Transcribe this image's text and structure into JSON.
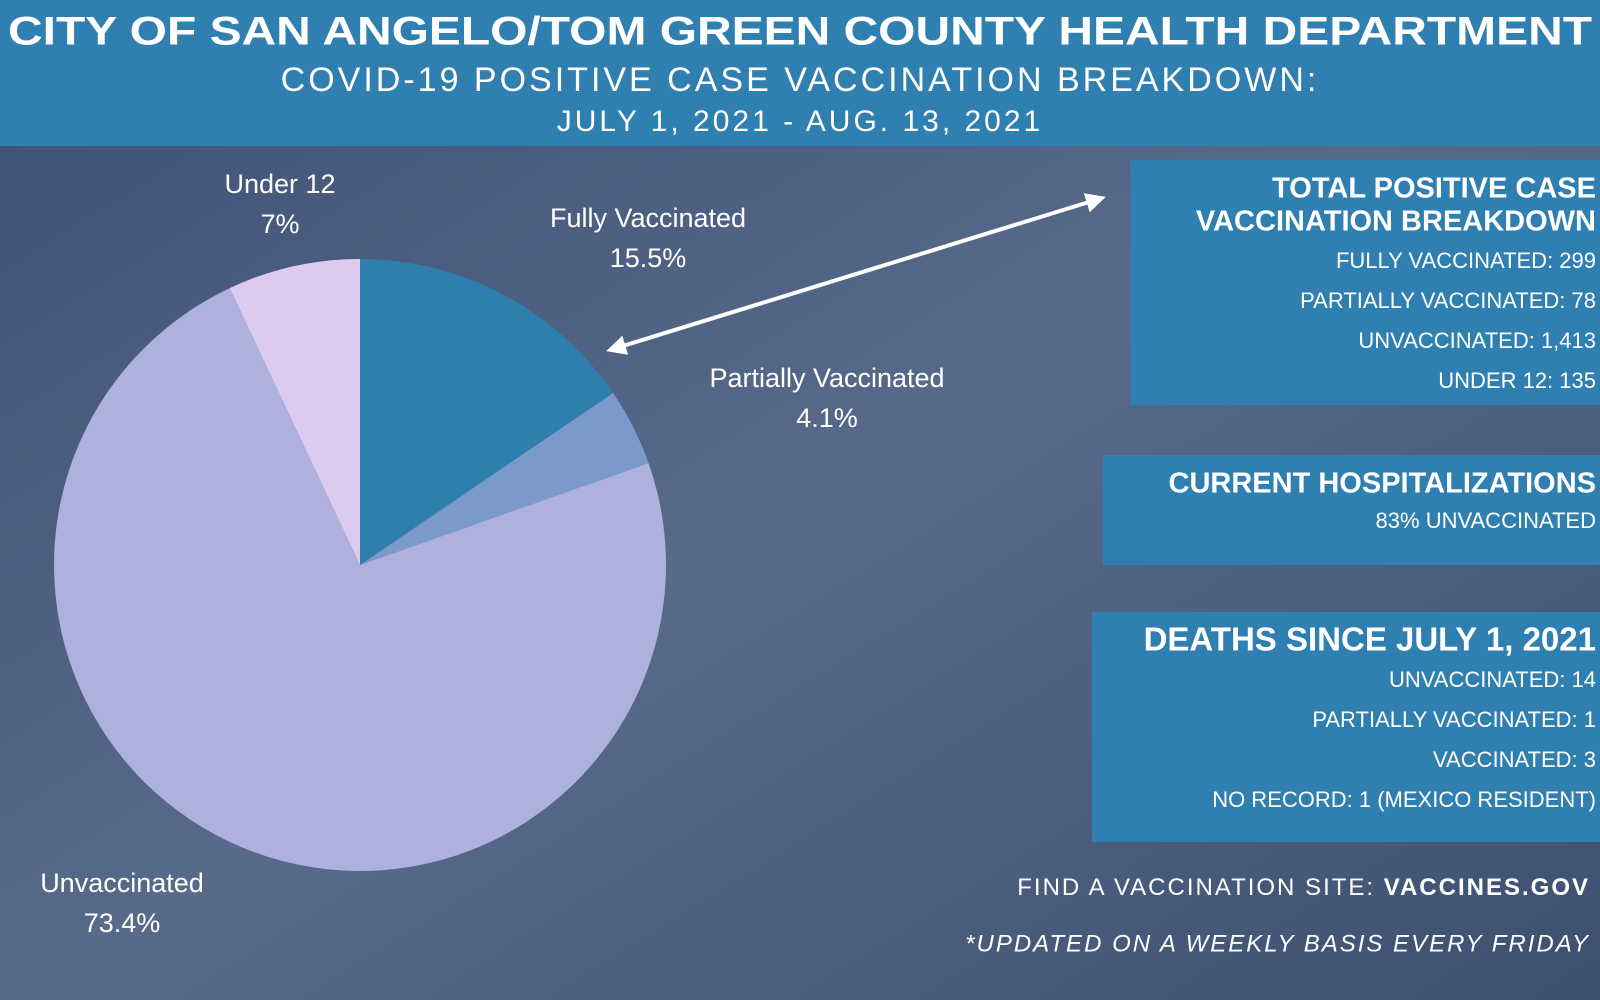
{
  "chart_data": {
    "type": "pie",
    "title": "CITY OF SAN ANGELO/TOM GREEN COUNTY HEALTH DEPARTMENT",
    "subtitle": [
      "COVID-19 POSITIVE CASE VACCINATION BREAKDOWN:",
      "JULY 1, 2021 - AUG. 13, 2021"
    ],
    "categories": [
      "Fully Vaccinated",
      "Partially Vaccinated",
      "Unvaccinated",
      "Under 12"
    ],
    "values": [
      15.5,
      4.1,
      73.4,
      7
    ],
    "value_labels": [
      "15.5%",
      "4.1%",
      "73.4%",
      "7%"
    ],
    "colors": [
      "#2f7fae",
      "#7a9bc9",
      "#aeb0dd",
      "#dccbee"
    ]
  },
  "panels": [
    {
      "heading": [
        "TOTAL POSITIVE CASE",
        "VACCINATION BREAKDOWN"
      ],
      "items": [
        "FULLY VACCINATED: 299",
        "PARTIALLY VACCINATED: 78",
        "UNVACCINATED: 1,413",
        "UNDER 12: 135"
      ]
    },
    {
      "heading": [
        "CURRENT HOSPITALIZATIONS"
      ],
      "items": [
        "83% UNVACCINATED"
      ]
    },
    {
      "heading": [
        "DEATHS SINCE JULY 1, 2021"
      ],
      "items": [
        "UNVACCINATED: 14",
        "PARTIALLY VACCINATED: 1",
        "VACCINATED: 3",
        "NO RECORD: 1 (MEXICO RESIDENT)"
      ]
    }
  ],
  "footer": {
    "prompt": "FIND A VACCINATION SITE:",
    "site": "VACCINES.GOV",
    "note": "*UPDATED ON A WEEKLY BASIS EVERY FRIDAY"
  }
}
